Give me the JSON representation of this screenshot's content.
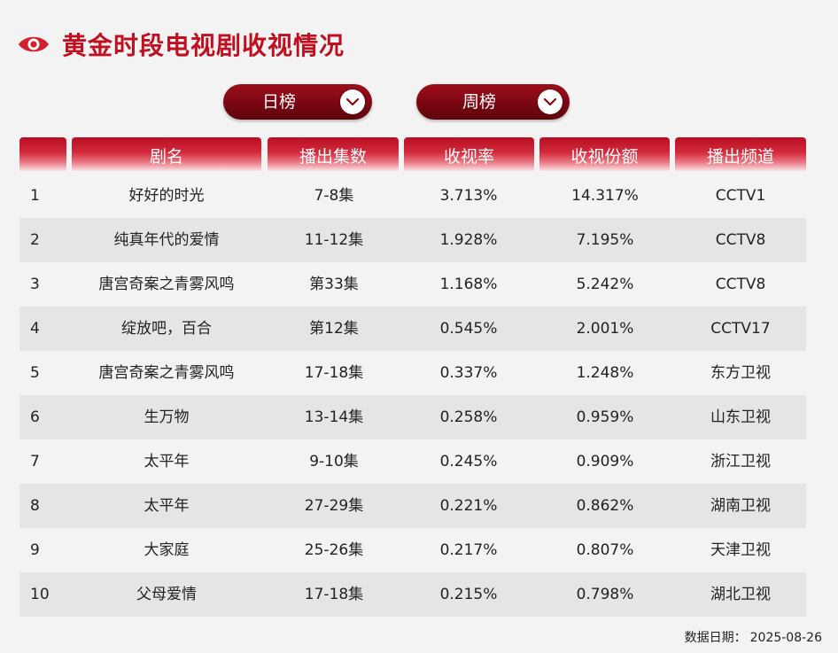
{
  "header": {
    "title": "黄金时段电视剧收视情况"
  },
  "toggles": {
    "daily": "日榜",
    "weekly": "周榜"
  },
  "table": {
    "columns": [
      "",
      "剧名",
      "播出集数",
      "收视率",
      "收视份额",
      "播出频道"
    ],
    "rows": [
      {
        "rank": "1",
        "name": "好好的时光",
        "episodes": "7-8集",
        "rating": "3.713%",
        "share": "14.317%",
        "channel": "CCTV1"
      },
      {
        "rank": "2",
        "name": "纯真年代的爱情",
        "episodes": "11-12集",
        "rating": "1.928%",
        "share": "7.195%",
        "channel": "CCTV8"
      },
      {
        "rank": "3",
        "name": "唐宫奇案之青雾风鸣",
        "episodes": "第33集",
        "rating": "1.168%",
        "share": "5.242%",
        "channel": "CCTV8"
      },
      {
        "rank": "4",
        "name": "绽放吧，百合",
        "episodes": "第12集",
        "rating": "0.545%",
        "share": "2.001%",
        "channel": "CCTV17"
      },
      {
        "rank": "5",
        "name": "唐宫奇案之青雾风鸣",
        "episodes": "17-18集",
        "rating": "0.337%",
        "share": "1.248%",
        "channel": "东方卫视"
      },
      {
        "rank": "6",
        "name": "生万物",
        "episodes": "13-14集",
        "rating": "0.258%",
        "share": "0.959%",
        "channel": "山东卫视"
      },
      {
        "rank": "7",
        "name": "太平年",
        "episodes": "9-10集",
        "rating": "0.245%",
        "share": "0.909%",
        "channel": "浙江卫视"
      },
      {
        "rank": "8",
        "name": "太平年",
        "episodes": "27-29集",
        "rating": "0.221%",
        "share": "0.862%",
        "channel": "湖南卫视"
      },
      {
        "rank": "9",
        "name": "大家庭",
        "episodes": "25-26集",
        "rating": "0.217%",
        "share": "0.807%",
        "channel": "天津卫视"
      },
      {
        "rank": "10",
        "name": "父母爱情",
        "episodes": "17-18集",
        "rating": "0.215%",
        "share": "0.798%",
        "channel": "湖北卫视"
      }
    ]
  },
  "footer": {
    "label": "数据日期：",
    "date": "2025-08-26"
  }
}
